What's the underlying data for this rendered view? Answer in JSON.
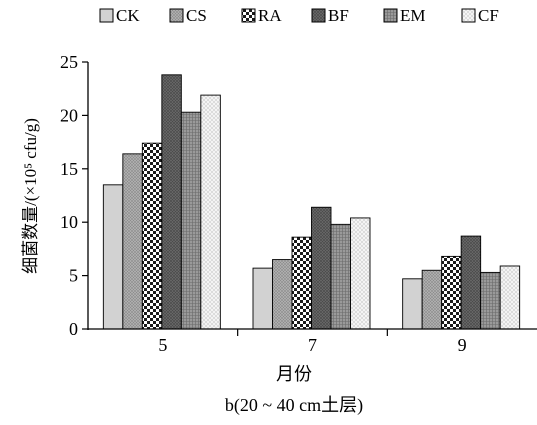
{
  "chart_data": {
    "type": "bar",
    "title": "",
    "caption": "b(20 ~ 40 cm土层)",
    "xlabel": "月份",
    "ylabel": "细菌数量/(×10⁵ cfu/g)",
    "categories": [
      "5",
      "7",
      "9"
    ],
    "ylim": [
      0,
      25
    ],
    "yticks": [
      0,
      5,
      10,
      15,
      20,
      25
    ],
    "grid": false,
    "legend_position": "top",
    "series": [
      {
        "name": "CK",
        "pattern": "light-gray",
        "values": [
          13.5,
          5.7,
          4.7
        ]
      },
      {
        "name": "CS",
        "pattern": "crosshatch-gray",
        "values": [
          16.4,
          6.5,
          5.5
        ]
      },
      {
        "name": "RA",
        "pattern": "checker",
        "values": [
          17.4,
          8.6,
          6.8
        ]
      },
      {
        "name": "BF",
        "pattern": "dark-crosshatch",
        "values": [
          23.8,
          11.4,
          8.7
        ]
      },
      {
        "name": "EM",
        "pattern": "dense-grid",
        "values": [
          20.3,
          9.8,
          5.3
        ]
      },
      {
        "name": "CF",
        "pattern": "light-grid",
        "values": [
          21.9,
          10.4,
          5.9
        ]
      }
    ]
  }
}
